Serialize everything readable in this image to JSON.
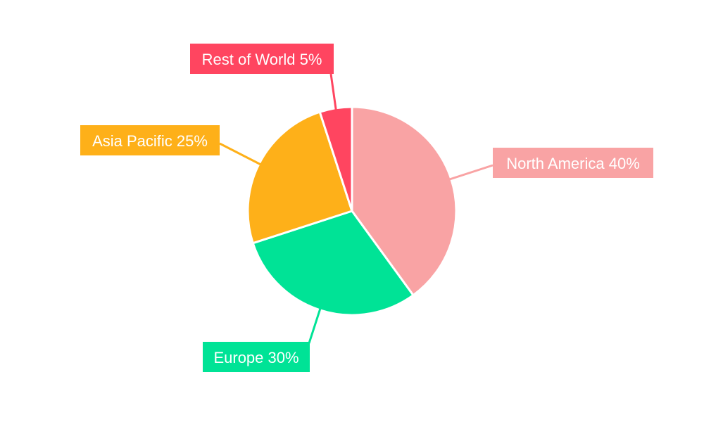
{
  "chart_data": {
    "type": "pie",
    "title": "",
    "categories": [
      "North America",
      "Europe",
      "Asia Pacific",
      "Rest of World"
    ],
    "values": [
      40,
      30,
      25,
      5
    ],
    "labels": [
      "North America 40%",
      "Europe 30%",
      "Asia Pacific 25%",
      "Rest of World 5%"
    ],
    "colors": [
      "#F9A3A4",
      "#00E396",
      "#FEB019",
      "#FF4560"
    ],
    "start_angle": "top, clockwise",
    "legend": "none"
  }
}
